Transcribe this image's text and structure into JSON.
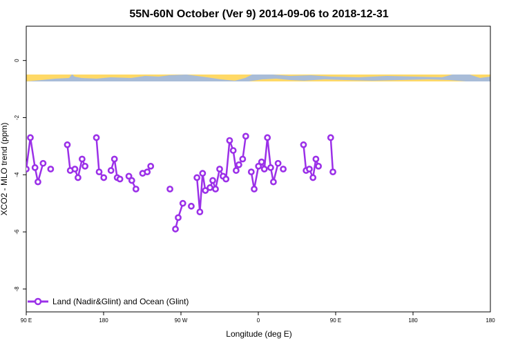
{
  "chart_data": {
    "type": "line",
    "title": "55N-60N October (Ver 9)   2014-09-06 to 2018-12-31",
    "xlabel": "Longitude (deg E)",
    "ylabel": "XCO2 - MLO trend (ppm)",
    "xlim": [
      -90,
      180
    ],
    "ylim": [
      -8.8,
      1.2
    ],
    "x_tick_labels": [
      {
        "value": -90,
        "label": "90 E"
      },
      {
        "value": -45,
        "label": "180"
      },
      {
        "value": 0,
        "label": "90 W"
      },
      {
        "value": 45,
        "label": "0"
      },
      {
        "value": 90,
        "label": "90 E"
      },
      {
        "value": 135,
        "label": "180"
      }
    ],
    "y_ticks": [
      0,
      -2,
      -4,
      -6,
      -8
    ],
    "y_tick_labels": [
      "0",
      "-2",
      "-4",
      "-6",
      "-8"
    ],
    "grid": false,
    "legend": {
      "position": "bottom-left",
      "entries": [
        "Land (Nadir&Glint) and Ocean (Glint)"
      ]
    },
    "series_color": "#9b30e8",
    "land_color": "#ffd966",
    "ocean_color": "#a8bcd8",
    "series": [
      {
        "name": "Land (Nadir&Glint) and Ocean (Glint)",
        "segments": [
          [
            [
              -90,
              -3.8
            ],
            [
              -87.6,
              -2.7
            ],
            [
              -84.9,
              -3.75
            ],
            [
              -83.2,
              -4.25
            ],
            [
              -80.2,
              -3.6
            ]
          ],
          [
            [
              -75.8,
              -3.8
            ]
          ],
          [
            [
              -66.1,
              -2.95
            ],
            [
              -64.4,
              -3.85
            ],
            [
              -61.7,
              -3.8
            ],
            [
              -59.9,
              -4.1
            ],
            [
              -57.5,
              -3.45
            ],
            [
              -55.8,
              -3.7
            ]
          ],
          [
            [
              -49.2,
              -2.7
            ],
            [
              -47.6,
              -3.9
            ],
            [
              -44.9,
              -4.1
            ]
          ],
          [
            [
              -40.7,
              -3.85
            ],
            [
              -38.7,
              -3.45
            ],
            [
              -37.1,
              -4.1
            ],
            [
              -35.5,
              -4.15
            ]
          ],
          [
            [
              -30.3,
              -4.05
            ],
            [
              -28.6,
              -4.2
            ],
            [
              -26.2,
              -4.5
            ]
          ],
          [
            [
              -22.3,
              -3.95
            ],
            [
              -19.6,
              -3.9
            ],
            [
              -17.6,
              -3.7
            ]
          ],
          [
            [
              -6.4,
              -4.5
            ]
          ],
          [
            [
              -3.2,
              -5.9
            ],
            [
              -1.6,
              -5.5
            ],
            [
              1.1,
              -5.0
            ]
          ],
          [
            [
              6.0,
              -5.1
            ]
          ],
          [
            [
              9.3,
              -4.1
            ],
            [
              11.0,
              -5.3
            ],
            [
              12.6,
              -3.95
            ],
            [
              14.2,
              -4.55
            ],
            [
              16.9,
              -4.45
            ],
            [
              18.5,
              -4.2
            ],
            [
              20.1,
              -4.5
            ],
            [
              22.5,
              -3.8
            ],
            [
              24.5,
              -4.05
            ],
            [
              26.2,
              -4.15
            ],
            [
              28.3,
              -2.8
            ],
            [
              30.4,
              -3.15
            ],
            [
              32.1,
              -3.85
            ],
            [
              33.7,
              -3.65
            ],
            [
              35.9,
              -3.45
            ],
            [
              37.7,
              -2.65
            ]
          ],
          [
            [
              40.9,
              -3.9
            ],
            [
              42.6,
              -4.5
            ],
            [
              45.1,
              -3.7
            ],
            [
              46.9,
              -3.55
            ],
            [
              48.5,
              -3.8
            ],
            [
              50.3,
              -2.7
            ],
            [
              52.2,
              -3.75
            ],
            [
              53.8,
              -4.25
            ],
            [
              56.5,
              -3.6
            ]
          ],
          [
            [
              59.5,
              -3.8
            ]
          ],
          [
            [
              71.3,
              -2.95
            ],
            [
              72.8,
              -3.85
            ],
            [
              74.7,
              -3.8
            ],
            [
              76.8,
              -4.1
            ],
            [
              78.5,
              -3.45
            ],
            [
              80.0,
              -3.7
            ]
          ],
          [
            [
              87.1,
              -2.7
            ],
            [
              88.4,
              -3.9
            ]
          ]
        ]
      }
    ]
  }
}
